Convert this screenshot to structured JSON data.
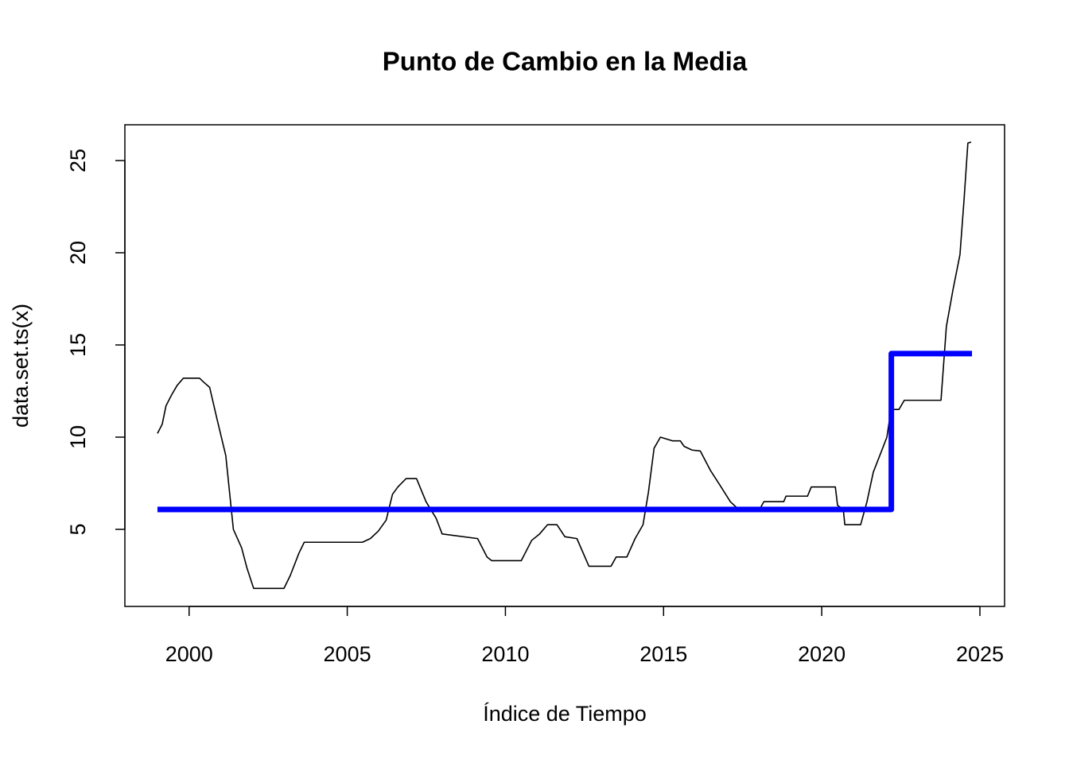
{
  "chart_data": {
    "type": "line",
    "title": "Punto de Cambio en la Media",
    "x_label": "Índice de Tiempo",
    "y_label": "data.set.ts(x)",
    "xlim": [
      1997.97,
      2025.78
    ],
    "ylim": [
      0.82,
      26.94
    ],
    "xticks": [
      2000,
      2005,
      2010,
      2015,
      2020,
      2025
    ],
    "yticks": [
      5,
      10,
      15,
      20,
      25
    ],
    "series": [
      {
        "color": "#000000",
        "width": 1.6,
        "x": [
          1999.0,
          1999.15,
          1999.27,
          1999.45,
          1999.62,
          1999.82,
          2000.33,
          2000.45,
          2000.65,
          2000.88,
          2001.16,
          2001.4,
          2001.66,
          2001.83,
          2002.04,
          2003.0,
          2003.2,
          2003.47,
          2003.64,
          2005.48,
          2005.73,
          2005.98,
          2006.23,
          2006.43,
          2006.6,
          2006.86,
          2007.19,
          2007.49,
          2007.81,
          2008.0,
          2009.12,
          2009.42,
          2009.57,
          2010.5,
          2010.83,
          2011.08,
          2011.33,
          2011.63,
          2011.88,
          2012.26,
          2012.64,
          2013.34,
          2013.5,
          2013.84,
          2014.1,
          2014.35,
          2014.52,
          2014.7,
          2014.9,
          2015.28,
          2015.53,
          2015.65,
          2015.9,
          2016.16,
          2016.48,
          2016.78,
          2017.11,
          2017.36,
          2018.04,
          2018.17,
          2018.8,
          2018.87,
          2019.55,
          2019.67,
          2020.43,
          2020.5,
          2020.68,
          2020.73,
          2021.23,
          2021.43,
          2021.63,
          2021.88,
          2022.06,
          2022.19,
          2022.44,
          2022.61,
          2023.77,
          2023.94,
          2024.15,
          2024.37,
          2024.5,
          2024.62,
          2024.72
        ],
        "values": [
          10.2,
          10.7,
          11.7,
          12.3,
          12.8,
          13.2,
          13.2,
          13.0,
          12.7,
          11.0,
          9.0,
          5.0,
          4.0,
          2.9,
          1.8,
          1.8,
          2.5,
          3.7,
          4.3,
          4.3,
          4.5,
          4.9,
          5.5,
          6.9,
          7.3,
          7.75,
          7.75,
          6.5,
          5.6,
          4.75,
          4.5,
          3.5,
          3.3,
          3.3,
          4.4,
          4.75,
          5.25,
          5.25,
          4.6,
          4.5,
          3.0,
          3.0,
          3.5,
          3.5,
          4.5,
          5.25,
          7.0,
          9.4,
          10.0,
          9.8,
          9.8,
          9.5,
          9.3,
          9.25,
          8.2,
          7.4,
          6.5,
          6.1,
          6.1,
          6.5,
          6.5,
          6.8,
          6.8,
          7.3,
          7.3,
          6.3,
          6.1,
          5.25,
          5.25,
          6.5,
          8.1,
          9.2,
          10.0,
          11.5,
          11.5,
          12.0,
          12.0,
          16.0,
          18.0,
          19.9,
          22.9,
          25.95,
          26.0
        ]
      },
      {
        "color": "#0000ff",
        "width": 7,
        "x": [
          1999.0,
          2022.2,
          2022.2,
          2024.75
        ],
        "values": [
          6.08,
          6.08,
          14.53,
          14.53
        ]
      }
    ]
  }
}
